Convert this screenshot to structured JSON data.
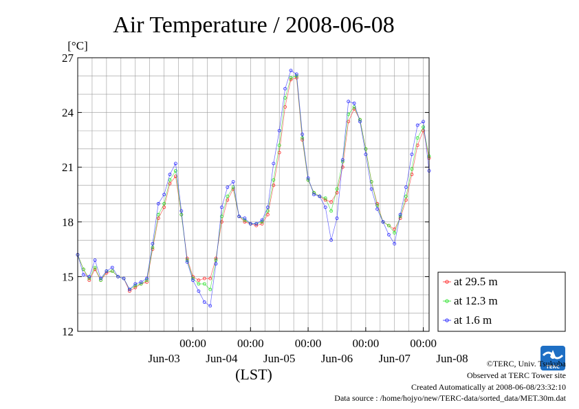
{
  "chart_data": {
    "type": "line",
    "title": "Air Temperature / 2008-06-08",
    "unit_label": "[°C]",
    "xlabel": "(LST)",
    "ylabel": "",
    "ylim": [
      12,
      27
    ],
    "xlim": [
      -1.0,
      5.1
    ],
    "y_ticks": [
      12,
      15,
      18,
      21,
      24,
      27
    ],
    "grid": true,
    "x_ticks": [
      {
        "time": "00:00",
        "day": "Jun-03",
        "x": 1
      },
      {
        "time": "00:00",
        "day": "Jun-04",
        "x": 2
      },
      {
        "time": "00:00",
        "day": "Jun-05",
        "x": 3
      },
      {
        "time": "00:00",
        "day": "Jun-06",
        "x": 4
      },
      {
        "time": "00:00",
        "day": "Jun-07",
        "x": 5
      }
    ],
    "day_labels": [
      {
        "text": "Jun-03",
        "x": 0.5
      },
      {
        "text": "Jun-04",
        "x": 1.5
      },
      {
        "text": "Jun-05",
        "x": 2.5
      },
      {
        "text": "Jun-06",
        "x": 3.5
      },
      {
        "text": "Jun-07",
        "x": 4.5
      },
      {
        "text": "Jun-08",
        "x": 5.5
      }
    ],
    "legend_position": "right-bottom",
    "series": [
      {
        "name": "at 29.5 m",
        "color": "#ff2020",
        "points": [
          [
            -1.0,
            16.2
          ],
          [
            -0.9,
            15.4
          ],
          [
            -0.8,
            14.8
          ],
          [
            -0.7,
            15.4
          ],
          [
            -0.6,
            14.8
          ],
          [
            -0.5,
            15.2
          ],
          [
            -0.4,
            15.3
          ],
          [
            -0.3,
            15.0
          ],
          [
            -0.2,
            14.9
          ],
          [
            -0.1,
            14.2
          ],
          [
            0.0,
            14.4
          ],
          [
            0.1,
            14.6
          ],
          [
            0.2,
            14.7
          ],
          [
            0.3,
            16.5
          ],
          [
            0.4,
            18.2
          ],
          [
            0.5,
            18.8
          ],
          [
            0.6,
            20.1
          ],
          [
            0.7,
            20.5
          ],
          [
            0.8,
            18.4
          ],
          [
            0.9,
            16.0
          ],
          [
            1.0,
            15.0
          ],
          [
            1.1,
            14.8
          ],
          [
            1.2,
            14.9
          ],
          [
            1.3,
            14.9
          ],
          [
            1.4,
            16.0
          ],
          [
            1.5,
            18.0
          ],
          [
            1.6,
            19.2
          ],
          [
            1.7,
            19.8
          ],
          [
            1.8,
            18.3
          ],
          [
            1.9,
            18.0
          ],
          [
            2.0,
            17.9
          ],
          [
            2.1,
            17.8
          ],
          [
            2.2,
            17.9
          ],
          [
            2.3,
            18.4
          ],
          [
            2.4,
            20.0
          ],
          [
            2.5,
            21.8
          ],
          [
            2.6,
            24.3
          ],
          [
            2.7,
            25.8
          ],
          [
            2.8,
            25.9
          ],
          [
            2.9,
            22.5
          ],
          [
            3.0,
            20.3
          ],
          [
            3.1,
            19.6
          ],
          [
            3.2,
            19.4
          ],
          [
            3.3,
            19.2
          ],
          [
            3.4,
            19.1
          ],
          [
            3.5,
            19.6
          ],
          [
            3.6,
            21.0
          ],
          [
            3.7,
            23.5
          ],
          [
            3.8,
            24.2
          ],
          [
            3.9,
            23.6
          ],
          [
            4.0,
            22.0
          ],
          [
            4.1,
            20.2
          ],
          [
            4.2,
            19.0
          ],
          [
            4.3,
            18.0
          ],
          [
            4.4,
            17.8
          ],
          [
            4.5,
            17.6
          ],
          [
            4.6,
            18.2
          ],
          [
            4.7,
            19.2
          ],
          [
            4.8,
            20.6
          ],
          [
            4.9,
            22.2
          ],
          [
            5.0,
            23.0
          ],
          [
            5.1,
            21.5
          ]
        ]
      },
      {
        "name": "at 12.3 m",
        "color": "#20e020",
        "points": [
          [
            -1.0,
            16.2
          ],
          [
            -0.9,
            15.4
          ],
          [
            -0.8,
            14.9
          ],
          [
            -0.7,
            15.5
          ],
          [
            -0.6,
            14.8
          ],
          [
            -0.5,
            15.3
          ],
          [
            -0.4,
            15.3
          ],
          [
            -0.3,
            15.0
          ],
          [
            -0.2,
            14.9
          ],
          [
            -0.1,
            14.3
          ],
          [
            0.0,
            14.5
          ],
          [
            0.1,
            14.6
          ],
          [
            0.2,
            14.8
          ],
          [
            0.3,
            16.6
          ],
          [
            0.4,
            18.4
          ],
          [
            0.5,
            19.0
          ],
          [
            0.6,
            20.3
          ],
          [
            0.7,
            20.8
          ],
          [
            0.8,
            18.4
          ],
          [
            0.9,
            15.9
          ],
          [
            1.0,
            14.9
          ],
          [
            1.1,
            14.6
          ],
          [
            1.2,
            14.6
          ],
          [
            1.3,
            14.3
          ],
          [
            1.4,
            15.9
          ],
          [
            1.5,
            18.3
          ],
          [
            1.6,
            19.4
          ],
          [
            1.7,
            19.9
          ],
          [
            1.8,
            18.3
          ],
          [
            1.9,
            18.1
          ],
          [
            2.0,
            17.9
          ],
          [
            2.1,
            17.9
          ],
          [
            2.2,
            18.0
          ],
          [
            2.3,
            18.6
          ],
          [
            2.4,
            20.3
          ],
          [
            2.5,
            22.2
          ],
          [
            2.6,
            24.8
          ],
          [
            2.7,
            25.9
          ],
          [
            2.8,
            26.0
          ],
          [
            2.9,
            22.6
          ],
          [
            3.0,
            20.3
          ],
          [
            3.1,
            19.6
          ],
          [
            3.2,
            19.4
          ],
          [
            3.3,
            19.3
          ],
          [
            3.4,
            18.6
          ],
          [
            3.5,
            19.8
          ],
          [
            3.6,
            21.3
          ],
          [
            3.7,
            23.9
          ],
          [
            3.8,
            24.3
          ],
          [
            3.9,
            23.6
          ],
          [
            4.0,
            22.0
          ],
          [
            4.1,
            20.2
          ],
          [
            4.2,
            18.9
          ],
          [
            4.3,
            18.0
          ],
          [
            4.4,
            17.8
          ],
          [
            4.5,
            17.4
          ],
          [
            4.6,
            18.3
          ],
          [
            4.7,
            19.4
          ],
          [
            4.8,
            20.9
          ],
          [
            4.9,
            22.6
          ],
          [
            5.0,
            23.2
          ],
          [
            5.1,
            21.6
          ]
        ]
      },
      {
        "name": "at 1.6 m",
        "color": "#2020ff",
        "points": [
          [
            -1.0,
            16.2
          ],
          [
            -0.9,
            15.1
          ],
          [
            -0.8,
            15.0
          ],
          [
            -0.7,
            15.9
          ],
          [
            -0.6,
            14.9
          ],
          [
            -0.5,
            15.3
          ],
          [
            -0.4,
            15.5
          ],
          [
            -0.3,
            15.0
          ],
          [
            -0.2,
            14.9
          ],
          [
            -0.1,
            14.3
          ],
          [
            0.0,
            14.6
          ],
          [
            0.1,
            14.7
          ],
          [
            0.2,
            14.9
          ],
          [
            0.3,
            16.8
          ],
          [
            0.4,
            19.0
          ],
          [
            0.5,
            19.5
          ],
          [
            0.6,
            20.6
          ],
          [
            0.7,
            21.2
          ],
          [
            0.8,
            18.6
          ],
          [
            0.9,
            15.8
          ],
          [
            1.0,
            14.8
          ],
          [
            1.1,
            14.2
          ],
          [
            1.2,
            13.6
          ],
          [
            1.3,
            13.4
          ],
          [
            1.4,
            15.7
          ],
          [
            1.5,
            18.8
          ],
          [
            1.6,
            19.9
          ],
          [
            1.7,
            20.2
          ],
          [
            1.8,
            18.3
          ],
          [
            1.9,
            18.2
          ],
          [
            2.0,
            17.9
          ],
          [
            2.1,
            17.9
          ],
          [
            2.2,
            18.1
          ],
          [
            2.3,
            18.8
          ],
          [
            2.4,
            21.2
          ],
          [
            2.5,
            23.0
          ],
          [
            2.6,
            25.3
          ],
          [
            2.7,
            26.3
          ],
          [
            2.8,
            26.1
          ],
          [
            2.9,
            22.8
          ],
          [
            3.0,
            20.4
          ],
          [
            3.1,
            19.5
          ],
          [
            3.2,
            19.4
          ],
          [
            3.3,
            18.8
          ],
          [
            3.4,
            17.0
          ],
          [
            3.5,
            18.2
          ],
          [
            3.6,
            21.4
          ],
          [
            3.7,
            24.6
          ],
          [
            3.8,
            24.5
          ],
          [
            3.9,
            23.5
          ],
          [
            4.0,
            21.7
          ],
          [
            4.1,
            19.8
          ],
          [
            4.2,
            18.7
          ],
          [
            4.3,
            18.0
          ],
          [
            4.4,
            17.3
          ],
          [
            4.5,
            16.8
          ],
          [
            4.6,
            18.4
          ],
          [
            4.7,
            19.9
          ],
          [
            4.8,
            21.7
          ],
          [
            4.9,
            23.3
          ],
          [
            5.0,
            23.5
          ],
          [
            5.1,
            20.8
          ]
        ]
      }
    ]
  },
  "footer": {
    "copyright": "©TERC, Univ. Tsukuba",
    "observed": "Observed at TERC Tower site",
    "created": "Created Automatically at 2008-06-08/23:32:10",
    "source": "Data source : /home/hojyo/new/TERC-data/sorted_data/MET.30m.dat"
  },
  "logo": {
    "text": "TERC",
    "color": "#1e6fc4"
  }
}
